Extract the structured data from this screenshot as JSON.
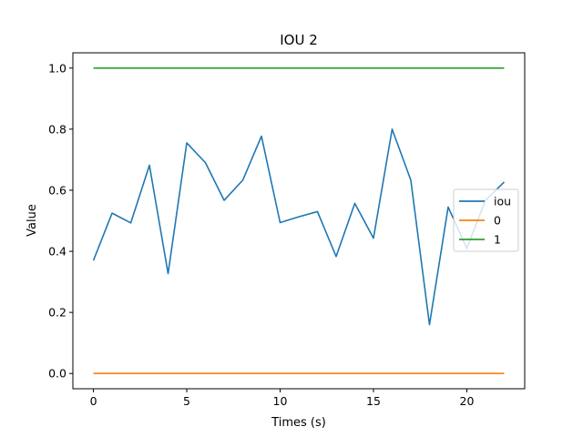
{
  "chart_data": {
    "type": "line",
    "title": "IOU 2",
    "xlabel": "Times (s)",
    "ylabel": "Value",
    "xlim": [
      -1.1,
      23.1
    ],
    "ylim": [
      -0.05,
      1.05
    ],
    "xticks": [
      0,
      5,
      10,
      15,
      20
    ],
    "yticks": [
      0.0,
      0.2,
      0.4,
      0.6,
      0.8,
      1.0
    ],
    "xtick_labels": [
      "0",
      "5",
      "10",
      "15",
      "20"
    ],
    "ytick_labels": [
      "0.0",
      "0.2",
      "0.4",
      "0.6",
      "0.8",
      "1.0"
    ],
    "grid": false,
    "legend_position": "center-right",
    "x": [
      0,
      1,
      2,
      3,
      4,
      5,
      6,
      7,
      8,
      9,
      10,
      11,
      12,
      13,
      14,
      15,
      16,
      17,
      18,
      19,
      20,
      21,
      22
    ],
    "series": [
      {
        "name": "iou",
        "color": "#1f77b4",
        "values": [
          0.37,
          0.525,
          0.493,
          0.682,
          0.327,
          0.755,
          0.69,
          0.567,
          0.633,
          0.777,
          0.494,
          0.513,
          0.53,
          0.383,
          0.557,
          0.443,
          0.8,
          0.633,
          0.16,
          0.545,
          0.41,
          0.567,
          0.627
        ]
      },
      {
        "name": "0",
        "color": "#ff7f0e",
        "values": [
          0,
          0,
          0,
          0,
          0,
          0,
          0,
          0,
          0,
          0,
          0,
          0,
          0,
          0,
          0,
          0,
          0,
          0,
          0,
          0,
          0,
          0,
          0
        ]
      },
      {
        "name": "1",
        "color": "#2ca02c",
        "values": [
          1,
          1,
          1,
          1,
          1,
          1,
          1,
          1,
          1,
          1,
          1,
          1,
          1,
          1,
          1,
          1,
          1,
          1,
          1,
          1,
          1,
          1,
          1
        ]
      }
    ]
  }
}
